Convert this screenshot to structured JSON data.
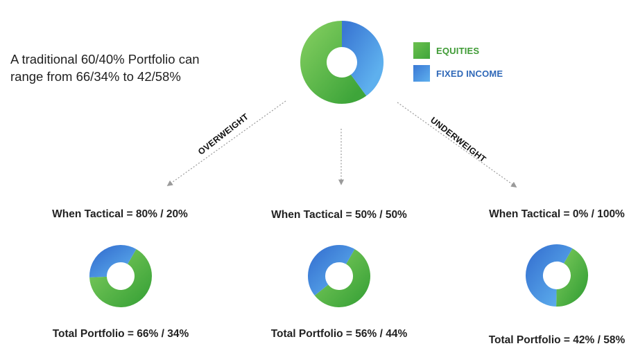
{
  "headline": {
    "line1": "A traditional 60/40% Portfolio can",
    "line2": "range from  66/34% to 42/58%"
  },
  "legend": {
    "items": [
      {
        "label": "EQUITIES",
        "color": "#4caf3f"
      },
      {
        "label": "FIXED INCOME",
        "color": "#3d7fd8"
      }
    ]
  },
  "arrows": {
    "left_label": "OVERWEIGHT",
    "right_label": "UNDERWEIGHT"
  },
  "colors": {
    "equities": "#4caf3f",
    "equities_light": "#79c85a",
    "fixed_income": "#3d7fd8",
    "fixed_income_light": "#5aa8ec",
    "legend_equities_text": "#3e9a34",
    "legend_fixed_text": "#2f68b8",
    "arrow": "#9a9a9a"
  },
  "chart_data": [
    {
      "type": "pie",
      "variant": "donut",
      "title": "",
      "slices": [
        {
          "name": "EQUITIES",
          "value": 60
        },
        {
          "name": "FIXED INCOME",
          "value": 40
        }
      ]
    },
    {
      "type": "pie",
      "variant": "donut",
      "title": "When Tactical = 80% / 20%",
      "caption": "Total Portfolio = 66% / 34%",
      "slices": [
        {
          "name": "EQUITIES",
          "value": 66
        },
        {
          "name": "FIXED INCOME",
          "value": 34
        }
      ]
    },
    {
      "type": "pie",
      "variant": "donut",
      "title": "When Tactical = 50% / 50%",
      "caption": "Total Portfolio = 56% / 44%",
      "slices": [
        {
          "name": "EQUITIES",
          "value": 56
        },
        {
          "name": "FIXED INCOME",
          "value": 44
        }
      ]
    },
    {
      "type": "pie",
      "variant": "donut",
      "title": "When Tactical = 0% / 100%",
      "caption": "Total Portfolio = 42% / 58%",
      "slices": [
        {
          "name": "EQUITIES",
          "value": 42
        },
        {
          "name": "FIXED INCOME",
          "value": 58
        }
      ]
    }
  ]
}
